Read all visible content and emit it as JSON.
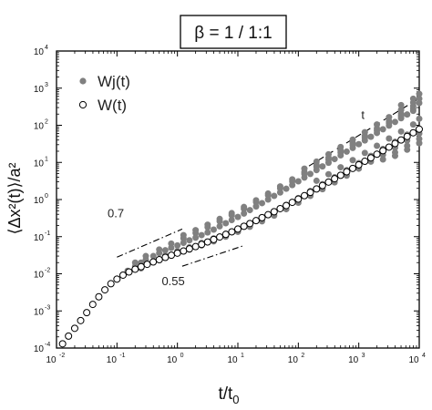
{
  "chart_data": {
    "type": "scatter",
    "title": "β = 1 / 1:1",
    "xlabel": "t/t",
    "xlabel_sub": "0",
    "ylabel": "⟨Δx²(t)⟩/a²",
    "xscale": "log",
    "yscale": "log",
    "xlim": [
      0.01,
      10000
    ],
    "ylim": [
      0.0001,
      10000
    ],
    "x_ticks": [
      {
        "value": 0.01,
        "base": "10",
        "exp": "-2"
      },
      {
        "value": 0.1,
        "base": "10",
        "exp": "-1"
      },
      {
        "value": 1,
        "base": "10",
        "exp": "0"
      },
      {
        "value": 10,
        "base": "10",
        "exp": "1"
      },
      {
        "value": 100,
        "base": "10",
        "exp": "2"
      },
      {
        "value": 1000,
        "base": "10",
        "exp": "3"
      },
      {
        "value": 10000,
        "base": "10",
        "exp": "4"
      }
    ],
    "y_ticks": [
      {
        "value": 0.0001,
        "base": "10",
        "exp": "-4"
      },
      {
        "value": 0.001,
        "base": "10",
        "exp": "-3"
      },
      {
        "value": 0.01,
        "base": "10",
        "exp": "-2"
      },
      {
        "value": 0.1,
        "base": "10",
        "exp": "-1"
      },
      {
        "value": 1,
        "base": "10",
        "exp": "0"
      },
      {
        "value": 10,
        "base": "10",
        "exp": "1"
      },
      {
        "value": 100,
        "base": "10",
        "exp": "2"
      },
      {
        "value": 1000,
        "base": "10",
        "exp": "3"
      },
      {
        "value": 10000,
        "base": "10",
        "exp": "4"
      }
    ],
    "legend_position": "top-left",
    "series": [
      {
        "name": "Wj(t)",
        "marker": "filled-circle",
        "color": "#808080",
        "points": [
          [
            0.15,
            0.012
          ],
          [
            0.2,
            0.016
          ],
          [
            0.25,
            0.02
          ],
          [
            0.3,
            0.024
          ],
          [
            0.4,
            0.03
          ],
          [
            0.5,
            0.036
          ],
          [
            0.63,
            0.043
          ],
          [
            0.79,
            0.05
          ],
          [
            1.0,
            0.058
          ],
          [
            1.26,
            0.068
          ],
          [
            1.58,
            0.08
          ],
          [
            2.0,
            0.094
          ],
          [
            2.51,
            0.11
          ],
          [
            3.16,
            0.13
          ],
          [
            3.98,
            0.155
          ],
          [
            5.0,
            0.19
          ],
          [
            6.3,
            0.23
          ],
          [
            7.9,
            0.28
          ],
          [
            10.0,
            0.34
          ],
          [
            12.6,
            0.42
          ],
          [
            15.8,
            0.52
          ],
          [
            20.0,
            0.65
          ],
          [
            25.1,
            0.8
          ],
          [
            31.6,
            1.0
          ],
          [
            39.8,
            1.25
          ],
          [
            50.1,
            1.55
          ],
          [
            63.1,
            1.95
          ],
          [
            79.4,
            2.45
          ],
          [
            100.0,
            3.1
          ],
          [
            126,
            3.9
          ],
          [
            158,
            4.9
          ],
          [
            200,
            6.2
          ],
          [
            251,
            7.8
          ],
          [
            316,
            9.8
          ],
          [
            398,
            12.3
          ],
          [
            501,
            15.5
          ],
          [
            631,
            19.5
          ],
          [
            794,
            24.5
          ],
          [
            1000,
            31
          ],
          [
            1259,
            39
          ],
          [
            1585,
            49
          ],
          [
            1995,
            62
          ],
          [
            2512,
            78
          ],
          [
            3162,
            98
          ],
          [
            3981,
            123
          ],
          [
            5012,
            155
          ],
          [
            6310,
            195
          ],
          [
            7943,
            245
          ],
          [
            0.2,
            0.02
          ],
          [
            0.3,
            0.03
          ],
          [
            0.5,
            0.045
          ],
          [
            0.79,
            0.065
          ],
          [
            1.26,
            0.09
          ],
          [
            2.0,
            0.125
          ],
          [
            3.16,
            0.18
          ],
          [
            5.0,
            0.26
          ],
          [
            7.9,
            0.38
          ],
          [
            12.6,
            0.56
          ],
          [
            20.0,
            0.85
          ],
          [
            31.6,
            1.3
          ],
          [
            50.1,
            2.0
          ],
          [
            79.4,
            3.1
          ],
          [
            126,
            4.9
          ],
          [
            200,
            7.6
          ],
          [
            316,
            11.8
          ],
          [
            501,
            18.5
          ],
          [
            794,
            29
          ],
          [
            1259,
            46
          ],
          [
            1995,
            72
          ],
          [
            3162,
            115
          ],
          [
            5012,
            180
          ],
          [
            7943,
            285
          ],
          [
            0.25,
            0.014
          ],
          [
            0.4,
            0.022
          ],
          [
            0.63,
            0.031
          ],
          [
            1.0,
            0.041
          ],
          [
            1.58,
            0.052
          ],
          [
            2.51,
            0.068
          ],
          [
            3.98,
            0.09
          ],
          [
            6.3,
            0.12
          ],
          [
            10.0,
            0.165
          ],
          [
            15.8,
            0.23
          ],
          [
            25.1,
            0.33
          ],
          [
            39.8,
            0.48
          ],
          [
            63.1,
            0.72
          ],
          [
            100,
            1.1
          ],
          [
            158,
            1.7
          ],
          [
            251,
            2.6
          ],
          [
            398,
            4.0
          ],
          [
            631,
            6.2
          ],
          [
            1000,
            9.6
          ],
          [
            1585,
            15
          ],
          [
            2512,
            23
          ],
          [
            3981,
            36
          ],
          [
            6310,
            56
          ],
          [
            1.26,
            0.11
          ],
          [
            2.0,
            0.15
          ],
          [
            3.16,
            0.21
          ],
          [
            5.0,
            0.3
          ],
          [
            7.9,
            0.43
          ],
          [
            12.6,
            0.63
          ],
          [
            20,
            0.95
          ],
          [
            31.6,
            1.45
          ],
          [
            50.1,
            2.25
          ],
          [
            79.4,
            3.5
          ],
          [
            126,
            5.5
          ],
          [
            200,
            8.6
          ],
          [
            316,
            13.5
          ],
          [
            501,
            21
          ],
          [
            794,
            33
          ],
          [
            1259,
            52
          ],
          [
            1995,
            82
          ],
          [
            3162,
            130
          ],
          [
            5012,
            205
          ],
          [
            7943,
            330
          ],
          [
            10000,
            400
          ],
          [
            1.58,
            0.045
          ],
          [
            2.51,
            0.058
          ],
          [
            3.98,
            0.075
          ],
          [
            6.3,
            0.1
          ],
          [
            10,
            0.135
          ],
          [
            15.8,
            0.185
          ],
          [
            25.1,
            0.26
          ],
          [
            39.8,
            0.37
          ],
          [
            63.1,
            0.55
          ],
          [
            100,
            0.82
          ],
          [
            158,
            1.25
          ],
          [
            251,
            1.9
          ],
          [
            398,
            2.9
          ],
          [
            631,
            4.4
          ],
          [
            1000,
            6.8
          ],
          [
            1585,
            10.5
          ],
          [
            2512,
            16
          ],
          [
            3981,
            25
          ],
          [
            6310,
            39
          ],
          [
            10000,
            60
          ],
          [
            126,
            6.8
          ],
          [
            200,
            10.5
          ],
          [
            316,
            16.5
          ],
          [
            501,
            26
          ],
          [
            794,
            41
          ],
          [
            1259,
            65
          ],
          [
            1995,
            105
          ],
          [
            3162,
            165
          ],
          [
            5012,
            260
          ],
          [
            7943,
            410
          ],
          [
            10000,
            520
          ],
          [
            200,
            3.2
          ],
          [
            316,
            4.8
          ],
          [
            501,
            7.4
          ],
          [
            794,
            11.5
          ],
          [
            1259,
            18
          ],
          [
            1995,
            28
          ],
          [
            3162,
            44
          ],
          [
            5012,
            68
          ],
          [
            7943,
            105
          ],
          [
            10000,
            150
          ],
          [
            2512,
            12
          ],
          [
            3981,
            18.5
          ],
          [
            6310,
            28
          ],
          [
            10000,
            43
          ],
          [
            5012,
            350
          ],
          [
            7943,
            520
          ],
          [
            10000,
            700
          ],
          [
            3981,
            15
          ],
          [
            6310,
            22
          ],
          [
            10000,
            33
          ]
        ]
      },
      {
        "name": "W(t)",
        "marker": "open-circle",
        "color": "#000000",
        "points": [
          [
            0.0126,
            0.00013
          ],
          [
            0.0158,
            0.00021
          ],
          [
            0.02,
            0.00034
          ],
          [
            0.0251,
            0.00055
          ],
          [
            0.0316,
            0.0009
          ],
          [
            0.0398,
            0.0015
          ],
          [
            0.0501,
            0.0024
          ],
          [
            0.0631,
            0.0037
          ],
          [
            0.0794,
            0.0054
          ],
          [
            0.1,
            0.0072
          ],
          [
            0.126,
            0.0092
          ],
          [
            0.158,
            0.0112
          ],
          [
            0.2,
            0.0133
          ],
          [
            0.251,
            0.0155
          ],
          [
            0.316,
            0.018
          ],
          [
            0.398,
            0.0208
          ],
          [
            0.501,
            0.024
          ],
          [
            0.631,
            0.0276
          ],
          [
            0.794,
            0.0316
          ],
          [
            1.0,
            0.036
          ],
          [
            1.26,
            0.041
          ],
          [
            1.58,
            0.047
          ],
          [
            2.0,
            0.054
          ],
          [
            2.51,
            0.062
          ],
          [
            3.16,
            0.072
          ],
          [
            3.98,
            0.084
          ],
          [
            5.01,
            0.098
          ],
          [
            6.31,
            0.115
          ],
          [
            7.94,
            0.135
          ],
          [
            10.0,
            0.16
          ],
          [
            12.6,
            0.19
          ],
          [
            15.8,
            0.226
          ],
          [
            20.0,
            0.27
          ],
          [
            25.1,
            0.325
          ],
          [
            31.6,
            0.39
          ],
          [
            39.8,
            0.47
          ],
          [
            50.1,
            0.57
          ],
          [
            63.1,
            0.69
          ],
          [
            79.4,
            0.84
          ],
          [
            100,
            1.03
          ],
          [
            126,
            1.27
          ],
          [
            158,
            1.56
          ],
          [
            200,
            1.93
          ],
          [
            251,
            2.38
          ],
          [
            316,
            2.95
          ],
          [
            398,
            3.65
          ],
          [
            501,
            4.5
          ],
          [
            631,
            5.6
          ],
          [
            794,
            6.9
          ],
          [
            1000,
            8.6
          ],
          [
            1259,
            10.7
          ],
          [
            1585,
            13.3
          ],
          [
            1995,
            16.6
          ],
          [
            2512,
            20.7
          ],
          [
            3162,
            25.8
          ],
          [
            3981,
            32.2
          ],
          [
            5012,
            40.2
          ],
          [
            6310,
            50.2
          ],
          [
            7943,
            62.8
          ],
          [
            10000,
            78.5
          ]
        ]
      }
    ],
    "annotations": [
      {
        "label": "t",
        "slope": 1,
        "style": "dashed",
        "from": [
          150,
          8
        ],
        "to": [
          9000,
          480
        ],
        "label_at": [
          1100,
          150
        ]
      },
      {
        "label": "0.7",
        "slope": 0.7,
        "style": "dash-dot",
        "from": [
          0.1,
          0.028
        ],
        "to": [
          1.2,
          0.16
        ],
        "label_at": [
          0.07,
          0.33
        ]
      },
      {
        "label": "0.55",
        "slope": 0.55,
        "style": "dash-dot",
        "from": [
          1.2,
          0.016
        ],
        "to": [
          12,
          0.056
        ],
        "label_at": [
          0.55,
          0.005
        ]
      }
    ]
  }
}
